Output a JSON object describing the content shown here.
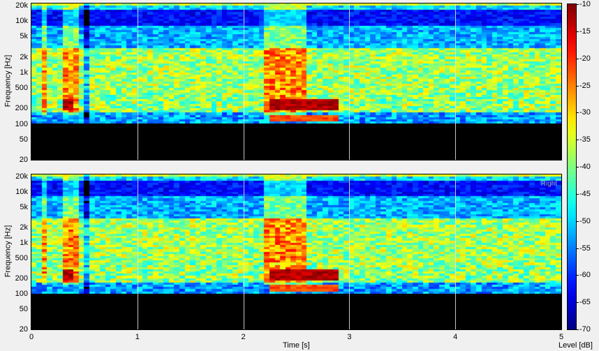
{
  "chart_data": [
    {
      "type": "heatmap",
      "channel_label": "",
      "xlabel": "Time [s]",
      "ylabel": "Frequency [Hz]",
      "xlim": [
        0,
        5
      ],
      "x_ticks": [
        "0",
        "1",
        "2",
        "3",
        "4",
        "5"
      ],
      "y_scale": "log",
      "ylim": [
        20,
        22000
      ],
      "y_ticks": [
        "20",
        "50",
        "100",
        "200",
        "500",
        "1k",
        "2k",
        "5k",
        "10k",
        "20k"
      ],
      "grid": "vertical at each second"
    },
    {
      "type": "heatmap",
      "channel_label": "Right",
      "xlabel": "Time [s]",
      "ylabel": "Frequency [Hz]",
      "xlim": [
        0,
        5
      ],
      "x_ticks": [
        "0",
        "1",
        "2",
        "3",
        "4",
        "5"
      ],
      "y_scale": "log",
      "ylim": [
        20,
        22000
      ],
      "y_ticks": [
        "20",
        "50",
        "100",
        "200",
        "500",
        "1k",
        "2k",
        "5k",
        "10k",
        "20k"
      ],
      "grid": "vertical at each second"
    }
  ],
  "colorbar": {
    "label": "Level [dB]",
    "range": [
      -70,
      -10
    ],
    "ticks": [
      "-10",
      "-15",
      "-20",
      "-25",
      "-30",
      "-35",
      "-40",
      "-45",
      "-50",
      "-55",
      "-60",
      "-65",
      "-70"
    ],
    "colormap": "jet"
  },
  "x_axis": {
    "label": "Time [s]"
  }
}
